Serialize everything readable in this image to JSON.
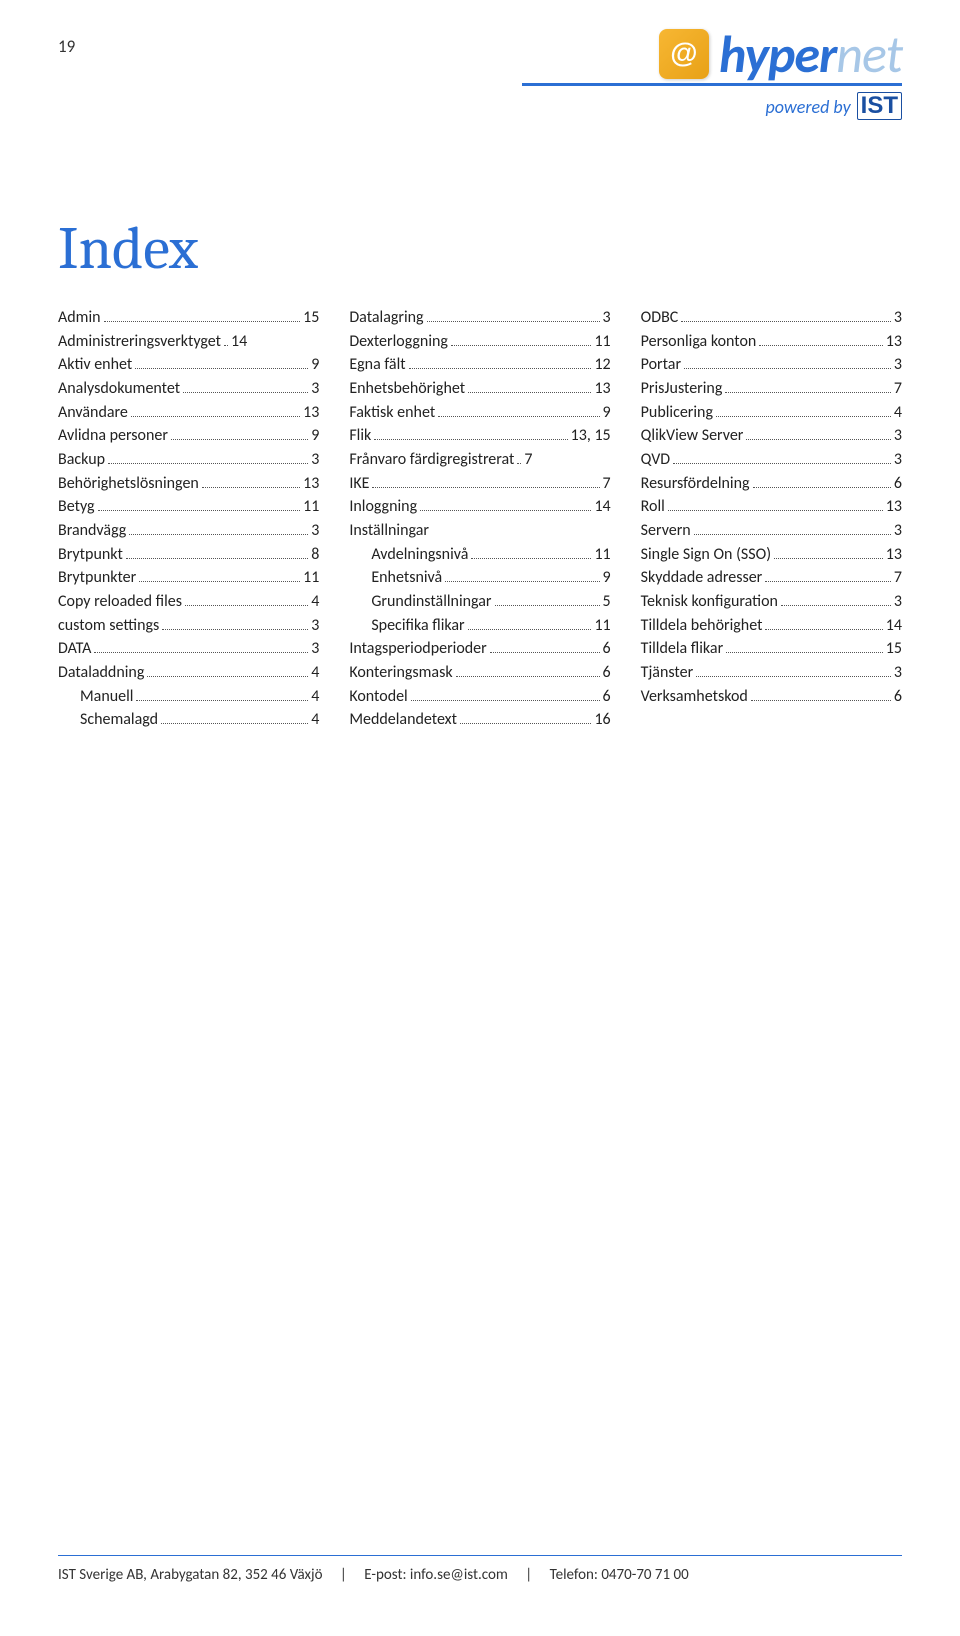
{
  "page_number": "19",
  "logo": {
    "brand_primary": "hyper",
    "brand_secondary": "net",
    "powered_by": "powered by",
    "company": "IST",
    "colors": {
      "primary": "#2b6fd4",
      "secondary": "#a7c7e7",
      "accent": "#e8a117",
      "ist": "#1a4fa1"
    }
  },
  "title": "Index",
  "columns": [
    {
      "entries": [
        {
          "label": "Admin",
          "page": "15"
        },
        {
          "label": "Administreringsverktyget",
          "page": "14",
          "nodots": true
        },
        {
          "label": "Aktiv enhet",
          "page": "9"
        },
        {
          "label": "Analysdokumentet",
          "page": "3"
        },
        {
          "label": "Användare",
          "page": "13"
        },
        {
          "label": "Avlidna personer",
          "page": "9"
        },
        {
          "label": "Backup",
          "page": "3"
        },
        {
          "label": "Behörighetslösningen",
          "page": "13"
        },
        {
          "label": "Betyg",
          "page": "11"
        },
        {
          "label": "Brandvägg",
          "page": "3"
        },
        {
          "label": "Brytpunkt",
          "page": "8"
        },
        {
          "label": "Brytpunkter",
          "page": "11"
        },
        {
          "label": "Copy reloaded files",
          "page": "4"
        },
        {
          "label": "custom settings",
          "page": "3"
        },
        {
          "label": "DATA",
          "page": "3"
        },
        {
          "label": "Dataladdning",
          "page": "4"
        },
        {
          "label": "Manuell",
          "page": "4",
          "sub": true
        },
        {
          "label": "Schemalagd",
          "page": "4",
          "sub": true
        }
      ]
    },
    {
      "entries": [
        {
          "label": "Datalagring",
          "page": "3"
        },
        {
          "label": "Dexterloggning",
          "page": "11"
        },
        {
          "label": "Egna fält",
          "page": "12"
        },
        {
          "label": "Enhetsbehörighet",
          "page": "13"
        },
        {
          "label": "Faktisk enhet",
          "page": "9"
        },
        {
          "label": "Flik",
          "page": "13, 15"
        },
        {
          "label": "Frånvaro färdigregistrerat",
          "page": "7",
          "nodots": true
        },
        {
          "label": "IKE",
          "page": "7"
        },
        {
          "label": "Inloggning",
          "page": "14"
        },
        {
          "label": "Inställningar",
          "page": "",
          "nopage": true
        },
        {
          "label": "Avdelningsnivå",
          "page": "11",
          "sub": true
        },
        {
          "label": "Enhetsnivå",
          "page": "9",
          "sub": true
        },
        {
          "label": "Grundinställningar",
          "page": "5",
          "sub": true
        },
        {
          "label": "Specifika flikar",
          "page": "11",
          "sub": true
        },
        {
          "label": "Intagsperiodperioder",
          "page": "6"
        },
        {
          "label": "Konteringsmask",
          "page": "6"
        },
        {
          "label": "Kontodel",
          "page": "6"
        },
        {
          "label": "Meddelandetext",
          "page": "16"
        }
      ]
    },
    {
      "entries": [
        {
          "label": "ODBC",
          "page": "3"
        },
        {
          "label": "Personliga konton",
          "page": "13"
        },
        {
          "label": "Portar",
          "page": "3"
        },
        {
          "label": "PrisJustering",
          "page": "7"
        },
        {
          "label": "Publicering",
          "page": "4"
        },
        {
          "label": "QlikView Server",
          "page": "3"
        },
        {
          "label": "QVD",
          "page": "3"
        },
        {
          "label": "Resursfördelning",
          "page": "6"
        },
        {
          "label": "Roll",
          "page": "13"
        },
        {
          "label": "Servern",
          "page": "3"
        },
        {
          "label": "Single Sign On (SSO)",
          "page": "13"
        },
        {
          "label": "Skyddade adresser",
          "page": "7"
        },
        {
          "label": "Teknisk konfiguration",
          "page": "3"
        },
        {
          "label": "Tilldela behörighet",
          "page": "14"
        },
        {
          "label": "Tilldela flikar",
          "page": "15"
        },
        {
          "label": "Tjänster",
          "page": "3"
        },
        {
          "label": "Verksamhetskod",
          "page": "6"
        }
      ]
    }
  ],
  "footer": {
    "company": "IST Sverige AB, Arabygatan 82, 352 46 Växjö",
    "email_label": "E-post:",
    "email": "info.se@ist.com",
    "phone_label": "Telefon:",
    "phone": "0470-70 71 00",
    "separator": "|"
  }
}
